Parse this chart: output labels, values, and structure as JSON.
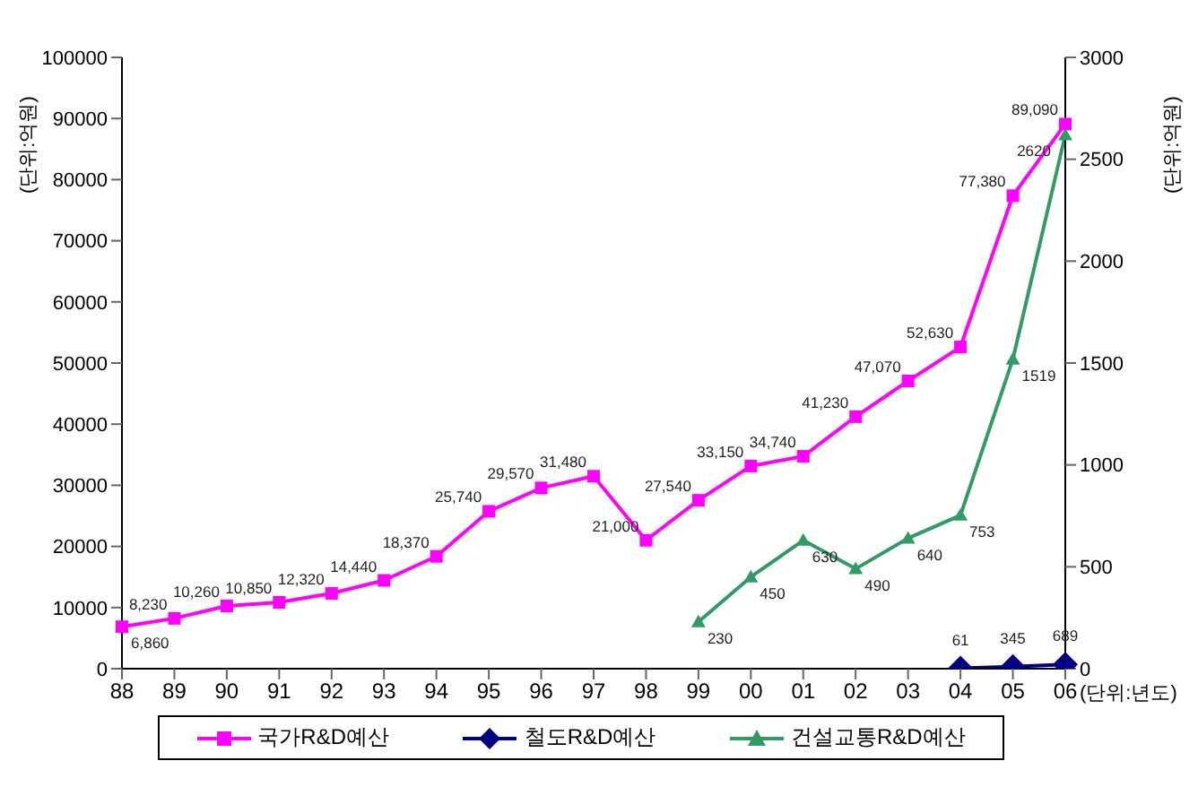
{
  "chart_data": {
    "type": "line",
    "ylabel": "(단위:억원)",
    "y2label": "(단위:억원)",
    "xlabel": "(단위:년도)",
    "categories": [
      "88",
      "89",
      "90",
      "91",
      "92",
      "93",
      "94",
      "95",
      "96",
      "97",
      "98",
      "99",
      "00",
      "01",
      "02",
      "03",
      "04",
      "05",
      "06"
    ],
    "series": [
      {
        "name": "국가R&D예산",
        "color": "#ff00ff",
        "marker": "square",
        "values": [
          6860,
          8230,
          10260,
          10850,
          12320,
          14440,
          18370,
          25740,
          29570,
          31480,
          21000,
          27540,
          33150,
          34740,
          41230,
          47070,
          52630,
          77380,
          89090
        ],
        "value_labels": [
          "6,860",
          "8,230",
          "10,260",
          "10,850",
          "12,320",
          "14,440",
          "18,370",
          "25,740",
          "29,570",
          "31,480",
          "21,000",
          "27,540",
          "33,150",
          "34,740",
          "41,230",
          "47,070",
          "52,630",
          "77,380",
          "89,090"
        ]
      },
      {
        "name": "철도R&D예산",
        "color": "#000080",
        "marker": "diamond",
        "values": [
          null,
          null,
          null,
          null,
          null,
          null,
          null,
          null,
          null,
          null,
          null,
          null,
          null,
          null,
          null,
          null,
          61,
          345,
          689
        ]
      },
      {
        "name": "건설교통R&D예산",
        "color": "#339966",
        "marker": "triangle",
        "axis": "y2",
        "values": [
          null,
          null,
          null,
          null,
          null,
          null,
          null,
          null,
          null,
          null,
          null,
          230,
          450,
          630,
          490,
          640,
          753,
          1519,
          2620
        ]
      }
    ],
    "data_labels": true,
    "ylim": [
      0,
      100000
    ],
    "yticks": [
      0,
      10000,
      20000,
      30000,
      40000,
      50000,
      60000,
      70000,
      80000,
      90000,
      100000
    ],
    "y2lim": [
      0,
      3000
    ],
    "y2ticks": [
      0,
      500,
      1000,
      1500,
      2000,
      2500,
      3000
    ],
    "grid": false,
    "legend": "bottom",
    "line_style": "solid"
  }
}
